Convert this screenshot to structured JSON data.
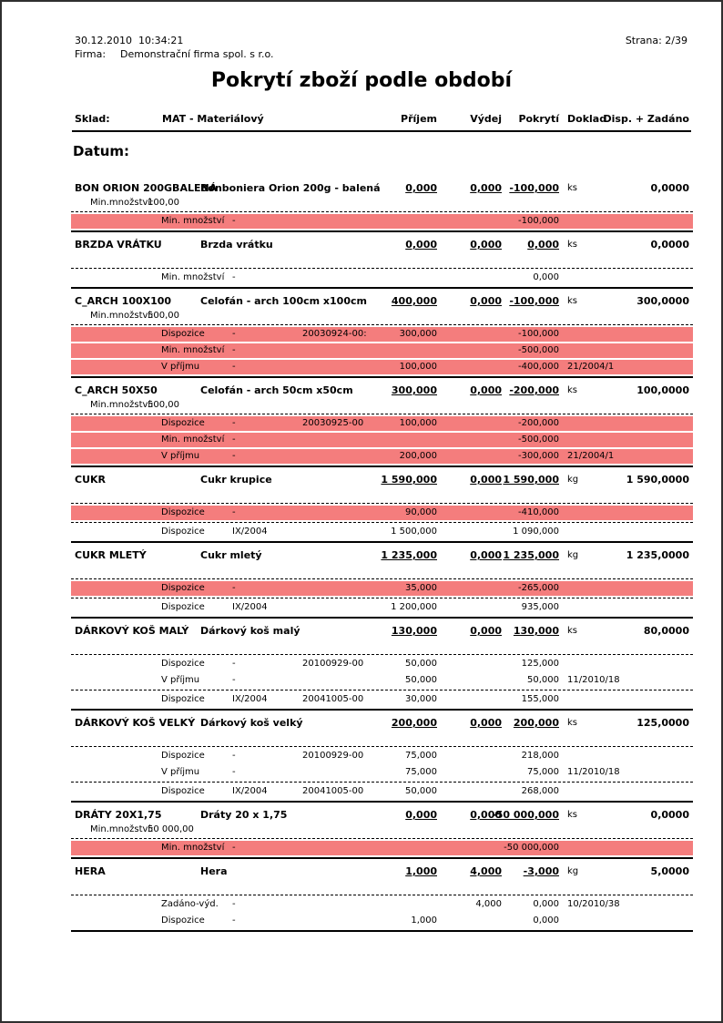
{
  "header": {
    "datetime": "30.12.2010  10:34:21",
    "page": "Strana: 2/39",
    "firm_label": "Firma:",
    "firm_name": "Demonstrační firma spol. s r.o.",
    "title": "Pokrytí zboží podle období"
  },
  "columns": {
    "sklad_label": "Sklad:",
    "sklad_value": "MAT - Materiálový",
    "prijem": "Příjem",
    "vydej": "Výdej",
    "pokryti": "Pokrytí",
    "doklad": "Doklad",
    "disp": "Disp. + Zadáno"
  },
  "section_title": "Datum:",
  "min_qty_label": "Min.množství:",
  "colors": {
    "highlight": "#f47d7d"
  },
  "items": [
    {
      "code": "BON ORION 200GBALENÁ",
      "name": "Bonboniera Orion 200g - balená",
      "prijem": "0,000",
      "vydej": "0,000",
      "pokryti": "-100,000",
      "unit": "ks",
      "disp": "0,0000",
      "min_qty": "100,00",
      "details": [
        {
          "type": "Min. množství",
          "ref": "-",
          "doc": "",
          "prijem": "",
          "vydej": "",
          "pokryti": "-100,000",
          "doklad": "",
          "red": true,
          "dash_before": false
        }
      ]
    },
    {
      "code": "BRZDA VRÁTKU",
      "name": "Brzda vrátku",
      "prijem": "0,000",
      "vydej": "0,000",
      "pokryti": "0,000",
      "unit": "ks",
      "disp": "0,0000",
      "min_qty": null,
      "details": [
        {
          "type": "Min. množství",
          "ref": "-",
          "doc": "",
          "prijem": "",
          "vydej": "",
          "pokryti": "0,000",
          "doklad": "",
          "red": false,
          "dash_before": false
        }
      ]
    },
    {
      "code": "C_ARCH 100X100",
      "name": "Celofán - arch 100cm x100cm",
      "prijem": "400,000",
      "vydej": "0,000",
      "pokryti": "-100,000",
      "unit": "ks",
      "disp": "300,0000",
      "min_qty": "500,00",
      "details": [
        {
          "type": "Dispozice",
          "ref": "-",
          "doc": "20030924-00:",
          "prijem": "300,000",
          "vydej": "",
          "pokryti": "-100,000",
          "doklad": "",
          "red": true,
          "dash_before": false
        },
        {
          "type": "Min. množství",
          "ref": "-",
          "doc": "",
          "prijem": "",
          "vydej": "",
          "pokryti": "-500,000",
          "doklad": "",
          "red": true,
          "dash_before": false
        },
        {
          "type": "V příjmu",
          "ref": "-",
          "doc": "",
          "prijem": "100,000",
          "vydej": "",
          "pokryti": "-400,000",
          "doklad": "21/2004/1",
          "red": true,
          "dash_before": false
        }
      ]
    },
    {
      "code": "C_ARCH 50X50",
      "name": "Celofán - arch 50cm x50cm",
      "prijem": "300,000",
      "vydej": "0,000",
      "pokryti": "-200,000",
      "unit": "ks",
      "disp": "100,0000",
      "min_qty": "500,00",
      "details": [
        {
          "type": "Dispozice",
          "ref": "-",
          "doc": "20030925-00",
          "prijem": "100,000",
          "vydej": "",
          "pokryti": "-200,000",
          "doklad": "",
          "red": true,
          "dash_before": false
        },
        {
          "type": "Min. množství",
          "ref": "-",
          "doc": "",
          "prijem": "",
          "vydej": "",
          "pokryti": "-500,000",
          "doklad": "",
          "red": true,
          "dash_before": false
        },
        {
          "type": "V příjmu",
          "ref": "-",
          "doc": "",
          "prijem": "200,000",
          "vydej": "",
          "pokryti": "-300,000",
          "doklad": "21/2004/1",
          "red": true,
          "dash_before": false
        }
      ]
    },
    {
      "code": "CUKR",
      "name": "Cukr krupice",
      "prijem": "1 590,000",
      "vydej": "0,000",
      "pokryti": "1 590,000",
      "unit": "kg",
      "disp": "1 590,0000",
      "min_qty": null,
      "details": [
        {
          "type": "Dispozice",
          "ref": "-",
          "doc": "",
          "prijem": "90,000",
          "vydej": "",
          "pokryti": "-410,000",
          "doklad": "",
          "red": true,
          "dash_before": false
        },
        {
          "type": "Dispozice",
          "ref": "IX/2004",
          "doc": "",
          "prijem": "1 500,000",
          "vydej": "",
          "pokryti": "1 090,000",
          "doklad": "",
          "red": false,
          "dash_before": true
        }
      ]
    },
    {
      "code": "CUKR MLETÝ",
      "name": "Cukr mletý",
      "prijem": "1 235,000",
      "vydej": "0,000",
      "pokryti": "1 235,000",
      "unit": "kg",
      "disp": "1 235,0000",
      "min_qty": null,
      "details": [
        {
          "type": "Dispozice",
          "ref": "-",
          "doc": "",
          "prijem": "35,000",
          "vydej": "",
          "pokryti": "-265,000",
          "doklad": "",
          "red": true,
          "dash_before": false
        },
        {
          "type": "Dispozice",
          "ref": "IX/2004",
          "doc": "",
          "prijem": "1 200,000",
          "vydej": "",
          "pokryti": "935,000",
          "doklad": "",
          "red": false,
          "dash_before": true
        }
      ]
    },
    {
      "code": "DÁRKOVÝ KOŠ MALÝ",
      "name": "Dárkový koš malý",
      "prijem": "130,000",
      "vydej": "0,000",
      "pokryti": "130,000",
      "unit": "ks",
      "disp": "80,0000",
      "min_qty": null,
      "details": [
        {
          "type": "Dispozice",
          "ref": "-",
          "doc": "20100929-00",
          "prijem": "50,000",
          "vydej": "",
          "pokryti": "125,000",
          "doklad": "",
          "red": false,
          "dash_before": false
        },
        {
          "type": "V příjmu",
          "ref": "-",
          "doc": "",
          "prijem": "50,000",
          "vydej": "",
          "pokryti": "50,000",
          "doklad": "11/2010/18",
          "red": false,
          "dash_before": false
        },
        {
          "type": "Dispozice",
          "ref": "IX/2004",
          "doc": "20041005-00",
          "prijem": "30,000",
          "vydej": "",
          "pokryti": "155,000",
          "doklad": "",
          "red": false,
          "dash_before": true
        }
      ]
    },
    {
      "code": "DÁRKOVÝ KOŠ VELKÝ",
      "name": "Dárkový koš velký",
      "prijem": "200,000",
      "vydej": "0,000",
      "pokryti": "200,000",
      "unit": "ks",
      "disp": "125,0000",
      "min_qty": null,
      "details": [
        {
          "type": "Dispozice",
          "ref": "-",
          "doc": "20100929-00",
          "prijem": "75,000",
          "vydej": "",
          "pokryti": "218,000",
          "doklad": "",
          "red": false,
          "dash_before": false
        },
        {
          "type": "V příjmu",
          "ref": "-",
          "doc": "",
          "prijem": "75,000",
          "vydej": "",
          "pokryti": "75,000",
          "doklad": "11/2010/18",
          "red": false,
          "dash_before": false
        },
        {
          "type": "Dispozice",
          "ref": "IX/2004",
          "doc": "20041005-00",
          "prijem": "50,000",
          "vydej": "",
          "pokryti": "268,000",
          "doklad": "",
          "red": false,
          "dash_before": true
        }
      ]
    },
    {
      "code": "DRÁTY 20X1,75",
      "name": "Dráty 20 x 1,75",
      "prijem": "0,000",
      "vydej": "0,000",
      "pokryti": "-50 000,000",
      "unit": "ks",
      "disp": "0,0000",
      "min_qty": "50 000,00",
      "details": [
        {
          "type": "Min. množství",
          "ref": "-",
          "doc": "",
          "prijem": "",
          "vydej": "",
          "pokryti": "-50 000,000",
          "doklad": "",
          "red": true,
          "dash_before": false
        }
      ]
    },
    {
      "code": "HERA",
      "name": "Hera",
      "prijem": "1,000",
      "vydej": "4,000",
      "pokryti": "-3,000",
      "unit": "kg",
      "disp": "5,0000",
      "min_qty": null,
      "details": [
        {
          "type": "Zadáno-výd.",
          "ref": "-",
          "doc": "",
          "prijem": "",
          "vydej": "4,000",
          "pokryti": "0,000",
          "doklad": "10/2010/38",
          "red": false,
          "dash_before": false
        },
        {
          "type": "Dispozice",
          "ref": "-",
          "doc": "",
          "prijem": "1,000",
          "vydej": "",
          "pokryti": "0,000",
          "doklad": "",
          "red": false,
          "dash_before": false
        }
      ]
    }
  ]
}
